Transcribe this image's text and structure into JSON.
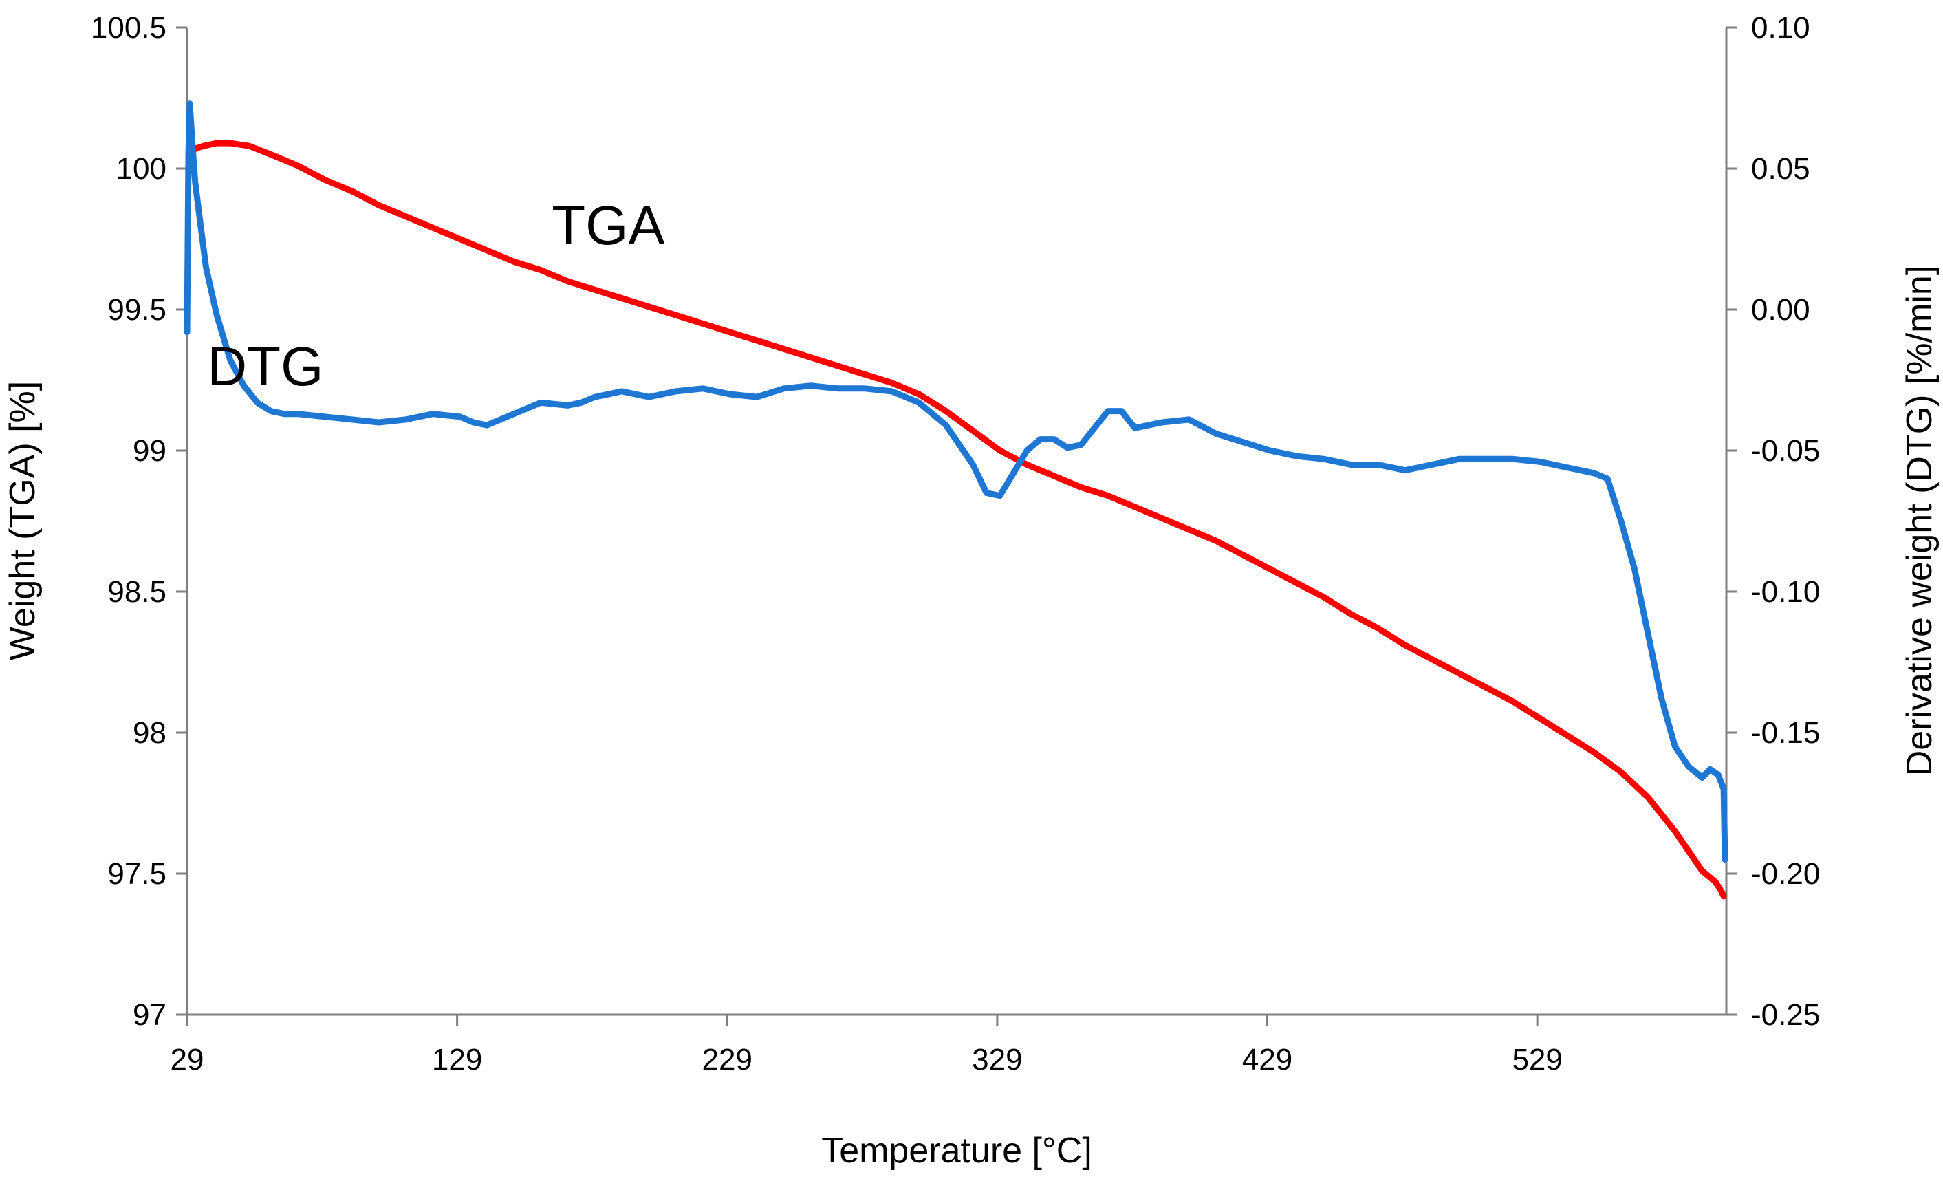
{
  "chart_data": {
    "type": "line",
    "title": "",
    "xlabel": "Temperature  [°C]",
    "ylabel_left": "Weight  (TGA)  [%]",
    "ylabel_right": "Derivative weight  (DTG)  [%/min]",
    "xlim": [
      29,
      599
    ],
    "xticks": [
      29,
      129,
      229,
      329,
      429,
      529
    ],
    "xtick_labels": [
      "29",
      "129",
      "229",
      "329",
      "429",
      "529"
    ],
    "ylim_left": [
      97,
      100.5
    ],
    "yticks_left": [
      97,
      97.5,
      98,
      98.5,
      99,
      99.5,
      100,
      100.5
    ],
    "ytick_labels_left": [
      "97",
      "97.5",
      "98",
      "98.5",
      "99",
      "99.5",
      "100",
      "100.5"
    ],
    "ylim_right": [
      -0.25,
      0.1
    ],
    "yticks_right": [
      -0.25,
      -0.2,
      -0.15,
      -0.1,
      -0.05,
      0.0,
      0.05,
      0.1
    ],
    "ytick_labels_right": [
      "-0.25",
      "-0.20",
      "-0.15",
      "-0.10",
      "-0.05",
      "0.00",
      "0.05",
      "0.10"
    ],
    "grid": false,
    "series": [
      {
        "name": "TGA",
        "axis": "left",
        "color": "#ff0000",
        "x": [
          30,
          32,
          35,
          40,
          45,
          52,
          60,
          70,
          80,
          90,
          100,
          110,
          120,
          130,
          140,
          150,
          160,
          170,
          180,
          190,
          200,
          210,
          220,
          230,
          240,
          250,
          260,
          270,
          280,
          290,
          300,
          310,
          320,
          330,
          340,
          350,
          360,
          370,
          380,
          390,
          400,
          410,
          420,
          430,
          440,
          450,
          460,
          470,
          480,
          490,
          500,
          510,
          520,
          530,
          540,
          550,
          560,
          570,
          580,
          585,
          590,
          595,
          597,
          598
        ],
        "y": [
          100.05,
          100.07,
          100.08,
          100.09,
          100.09,
          100.08,
          100.05,
          100.01,
          99.96,
          99.92,
          99.87,
          99.83,
          99.79,
          99.75,
          99.71,
          99.67,
          99.64,
          99.6,
          99.57,
          99.54,
          99.51,
          99.48,
          99.45,
          99.42,
          99.39,
          99.36,
          99.33,
          99.3,
          99.27,
          99.24,
          99.2,
          99.14,
          99.07,
          99.0,
          98.95,
          98.91,
          98.87,
          98.84,
          98.8,
          98.76,
          98.72,
          98.68,
          98.63,
          98.58,
          98.53,
          98.48,
          98.42,
          98.37,
          98.31,
          98.26,
          98.21,
          98.16,
          98.11,
          98.05,
          97.99,
          97.93,
          97.86,
          97.77,
          97.65,
          97.58,
          97.51,
          97.47,
          97.44,
          97.42
        ]
      },
      {
        "name": "DTG",
        "axis": "right",
        "color": "#1f77d4",
        "x": [
          29,
          29.5,
          30,
          31,
          32,
          34,
          36,
          40,
          45,
          50,
          55,
          60,
          65,
          70,
          80,
          90,
          100,
          110,
          120,
          130,
          135,
          140,
          150,
          160,
          170,
          175,
          180,
          190,
          200,
          210,
          220,
          230,
          240,
          250,
          260,
          270,
          280,
          290,
          300,
          310,
          320,
          325,
          330,
          335,
          340,
          345,
          350,
          355,
          360,
          370,
          375,
          380,
          390,
          400,
          410,
          420,
          430,
          440,
          450,
          460,
          470,
          480,
          490,
          500,
          510,
          520,
          530,
          540,
          550,
          555,
          560,
          565,
          570,
          575,
          580,
          585,
          590,
          593,
          596,
          598,
          598.5
        ],
        "y": [
          -0.008,
          0.055,
          0.073,
          0.058,
          0.045,
          0.03,
          0.015,
          -0.002,
          -0.018,
          -0.027,
          -0.033,
          -0.036,
          -0.037,
          -0.037,
          -0.038,
          -0.039,
          -0.04,
          -0.039,
          -0.037,
          -0.038,
          -0.04,
          -0.041,
          -0.037,
          -0.033,
          -0.034,
          -0.033,
          -0.031,
          -0.029,
          -0.031,
          -0.029,
          -0.028,
          -0.03,
          -0.031,
          -0.028,
          -0.027,
          -0.028,
          -0.028,
          -0.029,
          -0.033,
          -0.041,
          -0.055,
          -0.065,
          -0.066,
          -0.058,
          -0.05,
          -0.046,
          -0.046,
          -0.049,
          -0.048,
          -0.036,
          -0.036,
          -0.042,
          -0.04,
          -0.039,
          -0.044,
          -0.047,
          -0.05,
          -0.052,
          -0.053,
          -0.055,
          -0.055,
          -0.057,
          -0.055,
          -0.053,
          -0.053,
          -0.053,
          -0.054,
          -0.056,
          -0.058,
          -0.06,
          -0.075,
          -0.092,
          -0.115,
          -0.138,
          -0.155,
          -0.162,
          -0.166,
          -0.163,
          -0.165,
          -0.17,
          -0.195
        ]
      }
    ],
    "annotations": [
      {
        "text": "TGA",
        "x": 185,
        "y_left": 99.8
      },
      {
        "text": "DTG",
        "x": 58,
        "y_left": 99.3
      }
    ]
  }
}
